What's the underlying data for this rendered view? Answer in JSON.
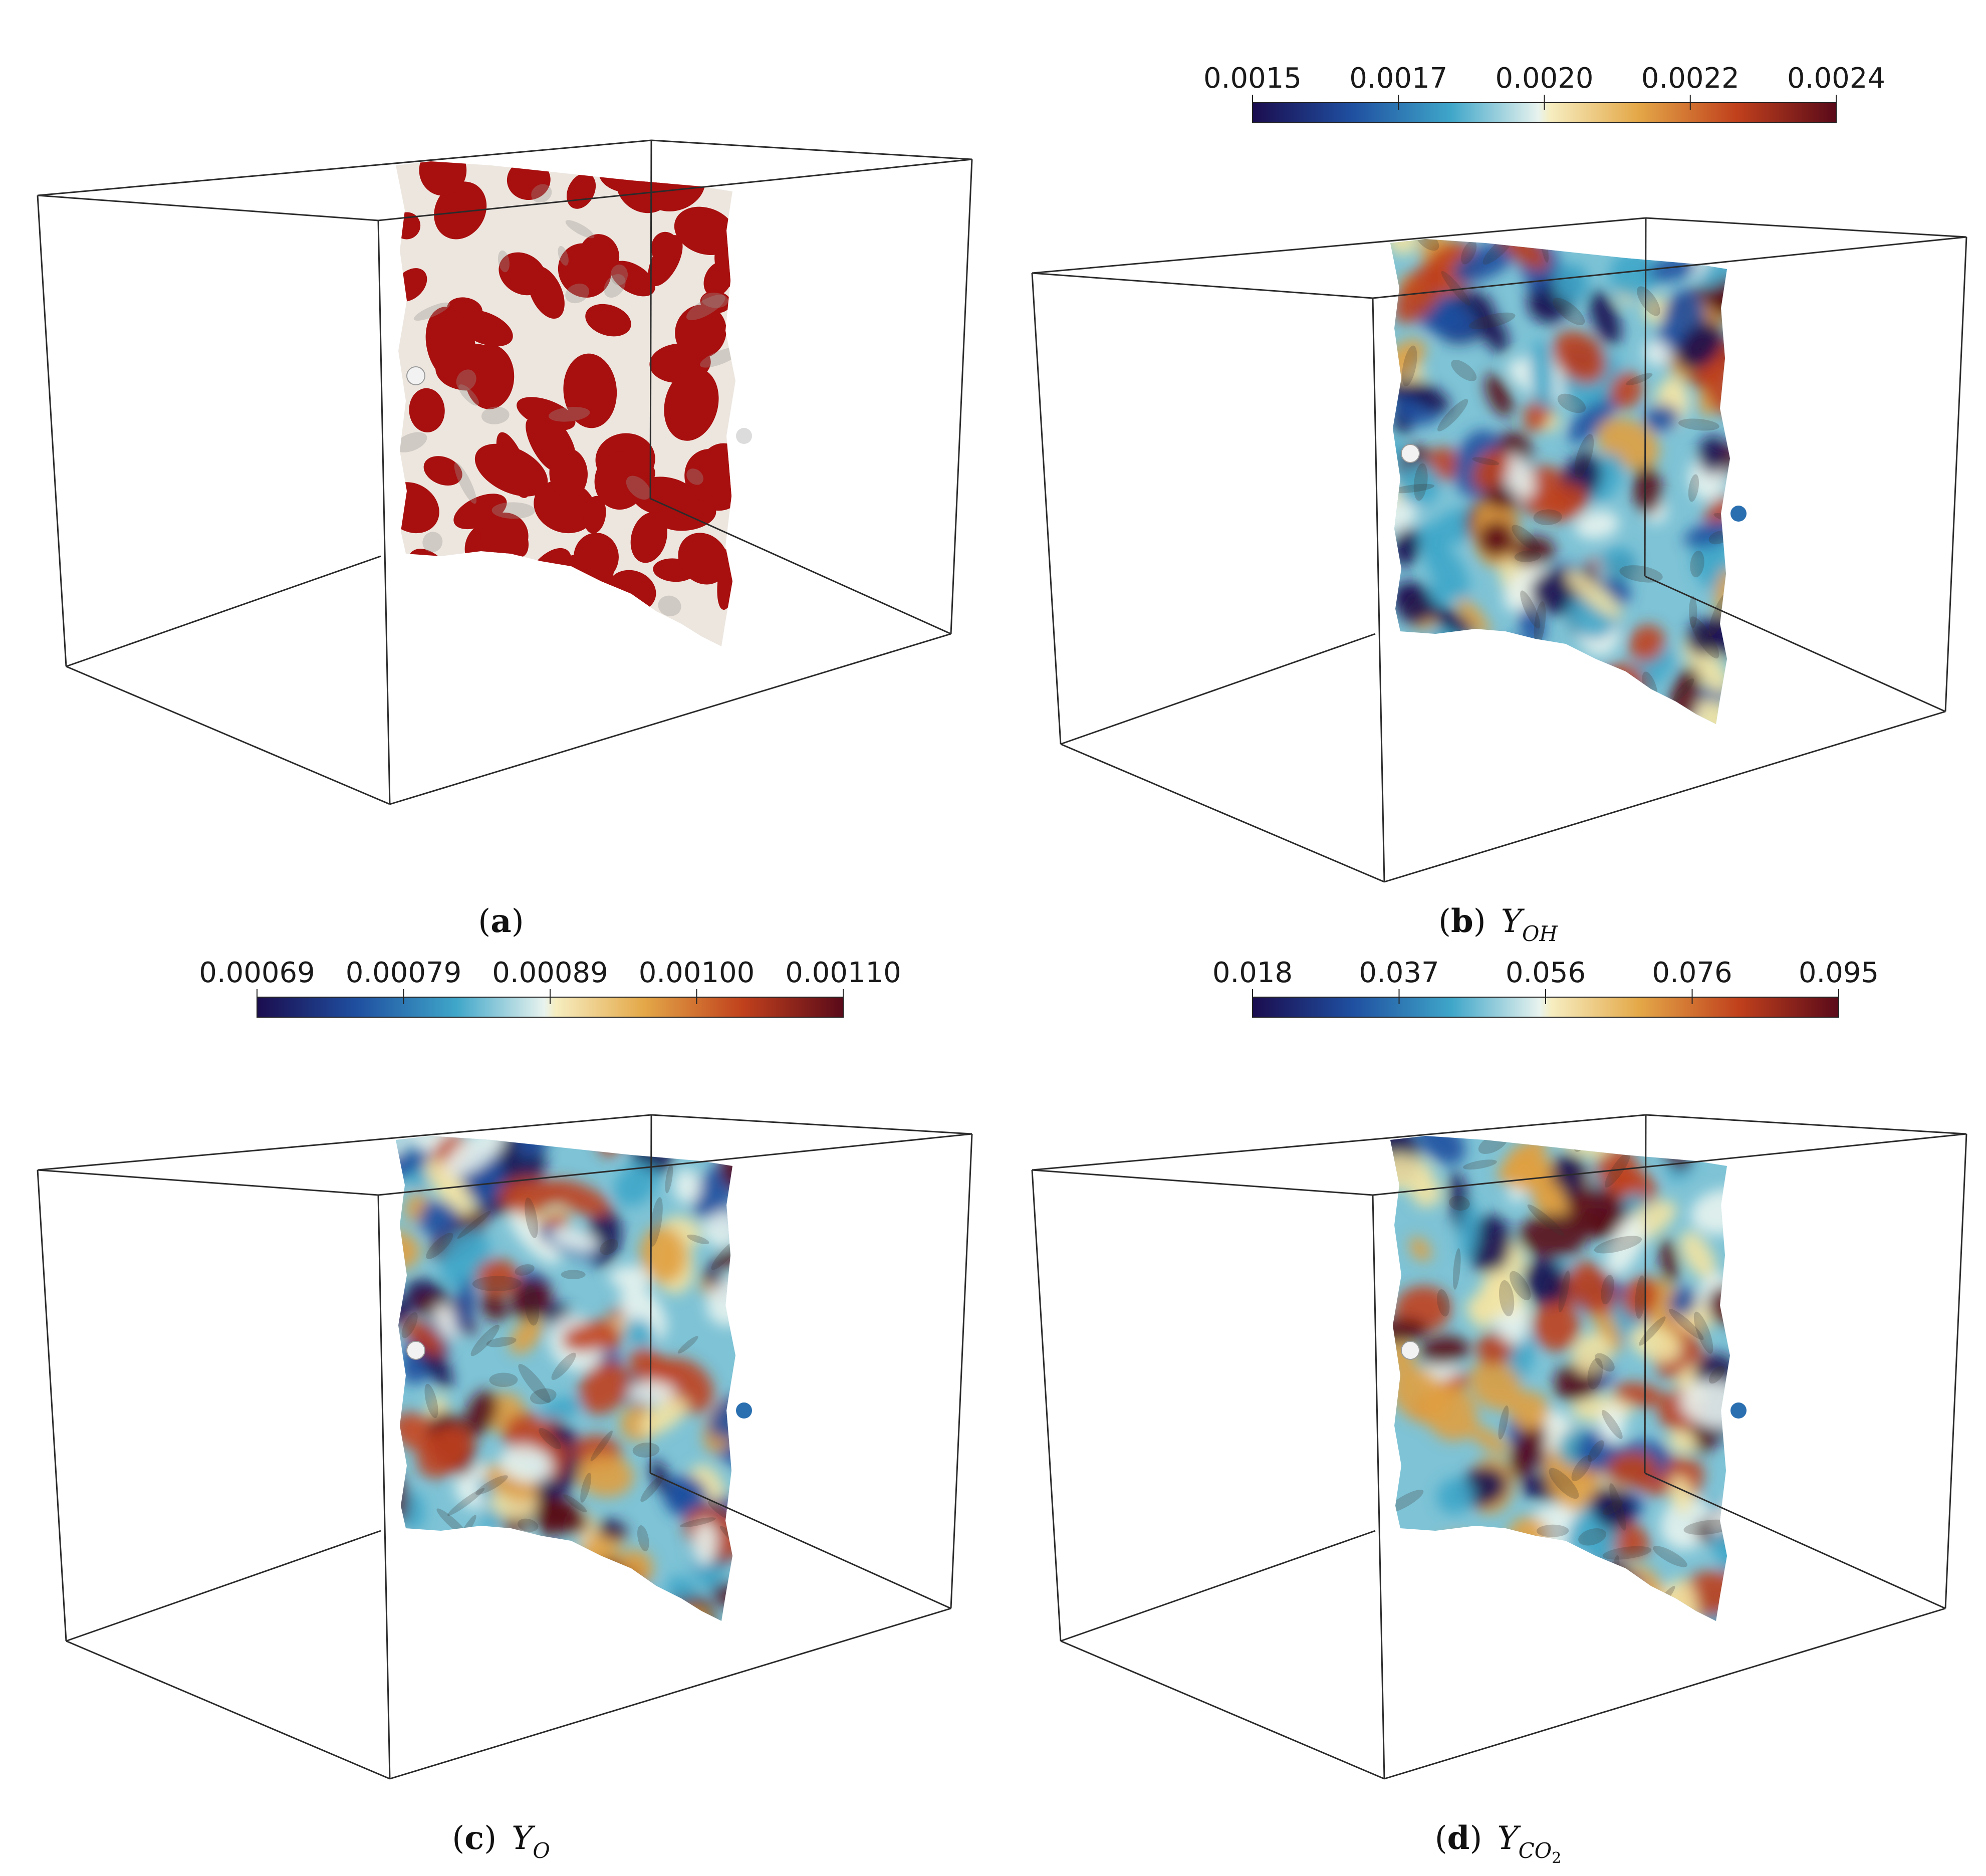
{
  "panels": [
    {
      "id": "a",
      "caption_label": "a",
      "caption_var": "",
      "caption_sub": "",
      "coloring": "binary",
      "colors": [
        "#a80f0f",
        "#ece6df"
      ],
      "colorbar": null
    },
    {
      "id": "b",
      "caption_label": "b",
      "caption_var": "Y",
      "caption_sub": "OH",
      "coloring": "map",
      "colorbar": {
        "ticks": [
          "0.0015",
          "0.0017",
          "0.0020",
          "0.0022",
          "0.0024"
        ]
      }
    },
    {
      "id": "c",
      "caption_label": "c",
      "caption_var": "Y",
      "caption_sub": "O",
      "coloring": "map",
      "colorbar": {
        "ticks": [
          "0.00069",
          "0.00079",
          "0.00089",
          "0.00100",
          "0.00110"
        ]
      }
    },
    {
      "id": "d",
      "caption_label": "d",
      "caption_var": "Y",
      "caption_sub": "CO",
      "caption_sub2": "2",
      "coloring": "map",
      "colorbar": {
        "ticks": [
          "0.018",
          "0.037",
          "0.056",
          "0.076",
          "0.095"
        ]
      }
    }
  ],
  "colormap": [
    "#1b0d4f",
    "#1f4fa0",
    "#3fa6c9",
    "#e8f3ee",
    "#f3e3a2",
    "#e0a040",
    "#c0401c",
    "#5a0a1a"
  ]
}
